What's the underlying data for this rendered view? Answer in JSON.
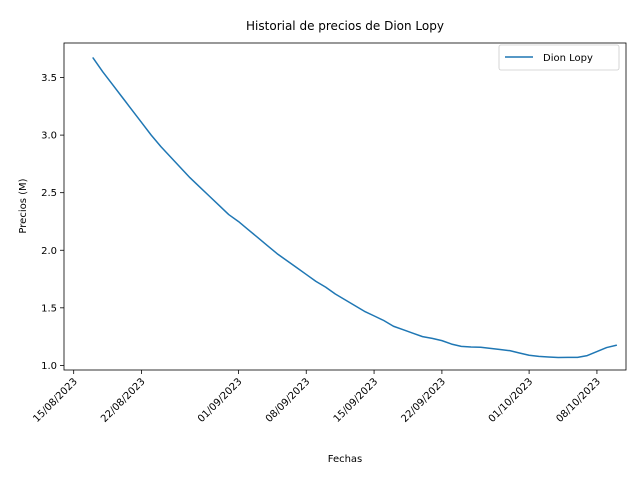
{
  "chart_data": {
    "type": "line",
    "title": "Historial de precios de Dion Lopy",
    "xlabel": "Fechas",
    "ylabel": "Precios (M)",
    "xlim": [
      "2023-08-14",
      "2023-10-11"
    ],
    "ylim": [
      0.96,
      3.8
    ],
    "x_ticks": [
      "15/08/2023",
      "22/08/2023",
      "01/09/2023",
      "08/09/2023",
      "15/09/2023",
      "22/09/2023",
      "01/10/2023",
      "08/10/2023"
    ],
    "y_ticks": [
      "1.0",
      "1.5",
      "2.0",
      "2.5",
      "3.0",
      "3.5"
    ],
    "legend_position": "top-right",
    "grid": false,
    "series": [
      {
        "name": "Dion Lopy",
        "color": "#1f77b4",
        "x": [
          "2023-08-17",
          "2023-08-18",
          "2023-08-19",
          "2023-08-20",
          "2023-08-21",
          "2023-08-22",
          "2023-08-23",
          "2023-08-24",
          "2023-08-25",
          "2023-08-26",
          "2023-08-27",
          "2023-08-28",
          "2023-08-29",
          "2023-08-30",
          "2023-08-31",
          "2023-09-01",
          "2023-09-02",
          "2023-09-03",
          "2023-09-04",
          "2023-09-05",
          "2023-09-06",
          "2023-09-07",
          "2023-09-08",
          "2023-09-09",
          "2023-09-10",
          "2023-09-11",
          "2023-09-12",
          "2023-09-13",
          "2023-09-14",
          "2023-09-15",
          "2023-09-16",
          "2023-09-17",
          "2023-09-18",
          "2023-09-19",
          "2023-09-20",
          "2023-09-21",
          "2023-09-22",
          "2023-09-23",
          "2023-09-24",
          "2023-09-25",
          "2023-09-26",
          "2023-09-27",
          "2023-09-28",
          "2023-09-29",
          "2023-09-30",
          "2023-10-01",
          "2023-10-02",
          "2023-10-03",
          "2023-10-04",
          "2023-10-05",
          "2023-10-06",
          "2023-10-07",
          "2023-10-08",
          "2023-10-09",
          "2023-10-10"
        ],
        "y": [
          3.67,
          3.55,
          3.44,
          3.33,
          3.22,
          3.11,
          3.0,
          2.9,
          2.81,
          2.72,
          2.63,
          2.55,
          2.47,
          2.39,
          2.31,
          2.25,
          2.18,
          2.11,
          2.04,
          1.97,
          1.91,
          1.85,
          1.79,
          1.73,
          1.68,
          1.62,
          1.57,
          1.52,
          1.47,
          1.43,
          1.39,
          1.34,
          1.31,
          1.28,
          1.25,
          1.235,
          1.215,
          1.185,
          1.165,
          1.16,
          1.158,
          1.148,
          1.138,
          1.128,
          1.108,
          1.088,
          1.078,
          1.073,
          1.068,
          1.07,
          1.07,
          1.085,
          1.12,
          1.155,
          1.175
        ]
      }
    ]
  }
}
